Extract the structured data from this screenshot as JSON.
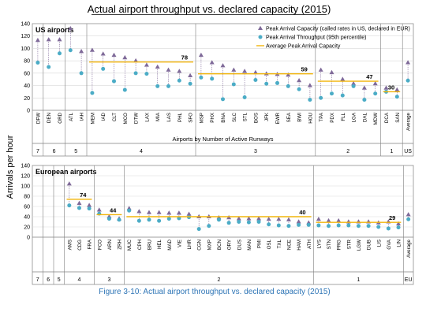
{
  "title": "Actual airport throughput vs. declared capacity (2015)",
  "caption": "Figure 3-10: Actual airport throughput vs. declared capacity (2015)",
  "y_axis_label": "Arrivals per hour",
  "colors": {
    "capacity_marker": "#7f6a99",
    "throughput_marker": "#4bacc6",
    "average_line": "#f2b50c",
    "axis": "#7f7f7f",
    "grid": "#d9d9d9",
    "caption": "#2e75b6"
  },
  "chart_data": [
    {
      "type": "scatter",
      "panel_title": "US airports",
      "xlabel": "Airports by Number of Active Runways",
      "ylim": [
        0,
        140
      ],
      "yticks": [
        0,
        20,
        40,
        60,
        80,
        100,
        120,
        140
      ],
      "grid": true,
      "legend_position": "top-right",
      "legend": [
        "Peak Arrival Capacity (called rates in US, declared in EUR)",
        "Peak Arrival Throughput (95th percentile)",
        "Average Peak Arrival Capacity"
      ],
      "groups": [
        {
          "runways": "7",
          "airports": [
            "DFW"
          ],
          "capacity": [
            113
          ],
          "throughput": [
            77
          ]
        },
        {
          "runways": "6",
          "airports": [
            "DEN",
            "ORD"
          ],
          "capacity": [
            114,
            114
          ],
          "throughput": [
            70,
            92
          ]
        },
        {
          "runways": "5",
          "airports": [
            "ATL",
            "IAH"
          ],
          "capacity": [
            132,
            95
          ],
          "throughput": [
            97,
            60
          ]
        },
        {
          "runways": "4",
          "airports": [
            "MEM",
            "IAD",
            "CLT",
            "MCO",
            "DTW",
            "LAX",
            "MIA",
            "LAS",
            "PHL",
            "SFO"
          ],
          "capacity": [
            97,
            91,
            89,
            85,
            80,
            73,
            70,
            65,
            63,
            56
          ],
          "throughput": [
            28,
            67,
            47,
            33,
            60,
            59,
            39,
            39,
            48,
            43
          ],
          "average": 78
        },
        {
          "runways": "3",
          "airports": [
            "MSP",
            "PHX",
            "BNA",
            "SLC",
            "STL",
            "BOS",
            "JFK",
            "EWR",
            "SEA",
            "BWI",
            "HOU"
          ],
          "capacity": [
            89,
            77,
            72,
            65,
            63,
            61,
            59,
            58,
            57,
            48,
            40
          ],
          "throughput": [
            53,
            51,
            18,
            42,
            21,
            49,
            43,
            44,
            39,
            34,
            17
          ],
          "average": 59
        },
        {
          "runways": "2",
          "airports": [
            "TPA",
            "PDX",
            "FLL",
            "LGA",
            "DAL",
            "MDW"
          ],
          "capacity": [
            65,
            61,
            50,
            43,
            36,
            43
          ],
          "throughput": [
            20,
            27,
            24,
            39,
            17,
            27
          ],
          "average": 47
        },
        {
          "runways": "1",
          "airports": [
            "DCA",
            "SAN"
          ],
          "capacity": [
            36,
            33
          ],
          "throughput": [
            30,
            22
          ],
          "average": 30
        },
        {
          "runways": "US",
          "airports": [
            "Average"
          ],
          "capacity": [
            77
          ],
          "throughput": [
            48
          ]
        }
      ]
    },
    {
      "type": "scatter",
      "panel_title": "European airports",
      "ylim": [
        0,
        140
      ],
      "yticks": [
        0,
        20,
        40,
        60,
        80,
        100,
        120,
        140
      ],
      "grid": true,
      "groups": [
        {
          "runways": "7",
          "airports": [],
          "capacity": [],
          "throughput": []
        },
        {
          "runways": "6",
          "airports": [],
          "capacity": [],
          "throughput": []
        },
        {
          "runways": "5",
          "airports": [],
          "capacity": [],
          "throughput": []
        },
        {
          "runways": "4",
          "airports": [
            "AMS",
            "CDG",
            "FRA"
          ],
          "capacity": [
            104,
            66,
            62
          ],
          "throughput": [
            62,
            57,
            56
          ],
          "average": 74
        },
        {
          "runways": "3",
          "airports": [
            "FCO",
            "ARN",
            "ZRH"
          ],
          "capacity": [
            53,
            40,
            36
          ],
          "throughput": [
            46,
            36,
            34
          ],
          "average": 44
        },
        {
          "runways": "2",
          "airports": [
            "MUC",
            "CPH",
            "BRU",
            "HEL",
            "MAD",
            "VIE",
            "LHR",
            "CGN",
            "MXP",
            "BCN",
            "ORY",
            "DUS",
            "MAN",
            "PMI",
            "OSL",
            "TXL",
            "NCE",
            "HAM",
            "ATH"
          ],
          "capacity": [
            56,
            50,
            48,
            48,
            47,
            47,
            45,
            40,
            40,
            38,
            38,
            36,
            36,
            36,
            35,
            35,
            34,
            30,
            28
          ],
          "throughput": [
            52,
            32,
            34,
            32,
            36,
            37,
            39,
            16,
            22,
            34,
            28,
            30,
            29,
            30,
            25,
            23,
            22,
            24,
            24
          ],
          "average": 40
        },
        {
          "runways": "1",
          "airports": [
            "LYS",
            "STN",
            "PRG",
            "STR",
            "LGW",
            "DUB",
            "LIS",
            "GVA",
            "LIN"
          ],
          "capacity": [
            35,
            32,
            32,
            30,
            30,
            30,
            28,
            30,
            26
          ],
          "throughput": [
            23,
            22,
            23,
            23,
            22,
            22,
            20,
            17,
            19
          ],
          "average": 29
        },
        {
          "runways": "EU",
          "airports": [
            "Average"
          ],
          "capacity": [
            44
          ],
          "throughput": [
            35
          ]
        }
      ]
    }
  ]
}
